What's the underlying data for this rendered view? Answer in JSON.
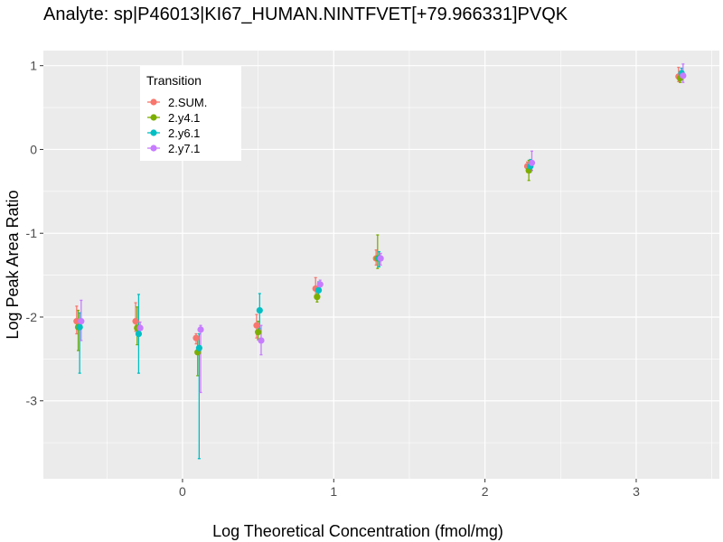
{
  "chart_data": {
    "type": "scatter",
    "title": "Analyte: sp|P46013|KI67_HUMAN.NINTFVET[+79.966331]PVQK",
    "xlabel": "Log Theoretical Concentration (fmol/mg)",
    "ylabel": "Log Peak Area Ratio",
    "xlim": [
      -0.92,
      3.55
    ],
    "ylim": [
      -3.93,
      1.18
    ],
    "x_ticks": [
      0,
      1,
      2,
      3
    ],
    "x_tick_labels": [
      "0",
      "1",
      "2",
      "3"
    ],
    "y_ticks": [
      1,
      0,
      -1,
      -2,
      -3
    ],
    "y_tick_labels": [
      "1",
      "0",
      "-1",
      "-2",
      "-3"
    ],
    "grid": true,
    "legend": {
      "title": "Transition",
      "position": "top-left-inside"
    },
    "error_bars": true,
    "series": [
      {
        "name": "2.SUM.",
        "color": "#F8766D",
        "points": [
          {
            "x": -0.7,
            "y": -2.05,
            "lo": -2.2,
            "hi": -1.87
          },
          {
            "x": -0.31,
            "y": -2.05,
            "lo": -2.17,
            "hi": -1.83
          },
          {
            "x": 0.09,
            "y": -2.25,
            "lo": -2.32,
            "hi": -2.2
          },
          {
            "x": 0.49,
            "y": -2.1,
            "lo": -2.25,
            "hi": -1.97
          },
          {
            "x": 0.88,
            "y": -1.66,
            "lo": -1.74,
            "hi": -1.53
          },
          {
            "x": 1.28,
            "y": -1.3,
            "lo": -1.38,
            "hi": -1.2
          },
          {
            "x": 2.28,
            "y": -0.2,
            "lo": -0.27,
            "hi": -0.15
          },
          {
            "x": 3.28,
            "y": 0.87,
            "lo": 0.81,
            "hi": 0.98
          }
        ]
      },
      {
        "name": "2.y4.1",
        "color": "#7CAE00",
        "points": [
          {
            "x": -0.69,
            "y": -2.12,
            "lo": -2.4,
            "hi": -1.92
          },
          {
            "x": -0.3,
            "y": -2.13,
            "lo": -2.33,
            "hi": -1.88
          },
          {
            "x": 0.1,
            "y": -2.42,
            "lo": -2.7,
            "hi": -2.25
          },
          {
            "x": 0.5,
            "y": -2.18,
            "lo": -2.27,
            "hi": -2.05
          },
          {
            "x": 0.89,
            "y": -1.76,
            "lo": -1.82,
            "hi": -1.68
          },
          {
            "x": 1.29,
            "y": -1.3,
            "lo": -1.42,
            "hi": -1.02
          },
          {
            "x": 2.29,
            "y": -0.25,
            "lo": -0.37,
            "hi": -0.13
          },
          {
            "x": 3.29,
            "y": 0.85,
            "lo": 0.8,
            "hi": 0.93
          }
        ]
      },
      {
        "name": "2.y6.1",
        "color": "#00BFC4",
        "points": [
          {
            "x": -0.68,
            "y": -2.12,
            "lo": -2.67,
            "hi": -1.95
          },
          {
            "x": -0.29,
            "y": -2.2,
            "lo": -2.67,
            "hi": -1.73
          },
          {
            "x": 0.11,
            "y": -2.37,
            "lo": -3.69,
            "hi": -2.2
          },
          {
            "x": 0.51,
            "y": -1.92,
            "lo": -2.14,
            "hi": -1.72
          },
          {
            "x": 0.9,
            "y": -1.68,
            "lo": -1.76,
            "hi": -1.58
          },
          {
            "x": 1.3,
            "y": -1.3,
            "lo": -1.4,
            "hi": -1.22
          },
          {
            "x": 2.3,
            "y": -0.2,
            "lo": -0.27,
            "hi": -0.12
          },
          {
            "x": 3.3,
            "y": 0.91,
            "lo": 0.83,
            "hi": 0.97
          }
        ]
      },
      {
        "name": "2.y7.1",
        "color": "#C77CFF",
        "points": [
          {
            "x": -0.67,
            "y": -2.05,
            "lo": -2.28,
            "hi": -1.8
          },
          {
            "x": -0.28,
            "y": -2.13,
            "lo": -2.2,
            "hi": -2.06
          },
          {
            "x": 0.12,
            "y": -2.15,
            "lo": -2.9,
            "hi": -2.1
          },
          {
            "x": 0.52,
            "y": -2.28,
            "lo": -2.45,
            "hi": -2.1
          },
          {
            "x": 0.91,
            "y": -1.61,
            "lo": -1.68,
            "hi": -1.56
          },
          {
            "x": 1.31,
            "y": -1.3,
            "lo": -1.38,
            "hi": -1.24
          },
          {
            "x": 2.31,
            "y": -0.16,
            "lo": -0.25,
            "hi": -0.02
          },
          {
            "x": 3.31,
            "y": 0.88,
            "lo": 0.8,
            "hi": 1.02
          }
        ]
      }
    ]
  }
}
